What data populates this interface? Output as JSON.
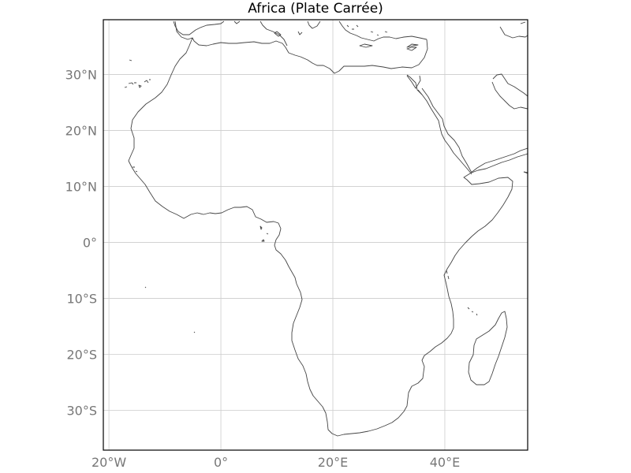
{
  "map": {
    "title": "Africa (Plate Carrée)",
    "projection": "Plate Carrée",
    "extent": {
      "lon": [
        -21,
        54.8
      ],
      "lat": [
        -37.1,
        39.8
      ]
    },
    "gridlines": true,
    "lon_ticks": [
      {
        "value": -20,
        "label": "20°W"
      },
      {
        "value": 0,
        "label": "0°"
      },
      {
        "value": 20,
        "label": "20°E"
      },
      {
        "value": 40,
        "label": "40°E"
      }
    ],
    "lat_ticks": [
      {
        "value": 30,
        "label": "30°N"
      },
      {
        "value": 20,
        "label": "20°N"
      },
      {
        "value": 10,
        "label": "10°N"
      },
      {
        "value": 0,
        "label": "0°"
      },
      {
        "value": -10,
        "label": "10°S"
      },
      {
        "value": -20,
        "label": "20°S"
      },
      {
        "value": -30,
        "label": "30°S"
      }
    ],
    "colors": {
      "coastline": "#444444",
      "grid": "#cccccc",
      "tick_labels": "#777777",
      "frame": "#000000"
    }
  }
}
